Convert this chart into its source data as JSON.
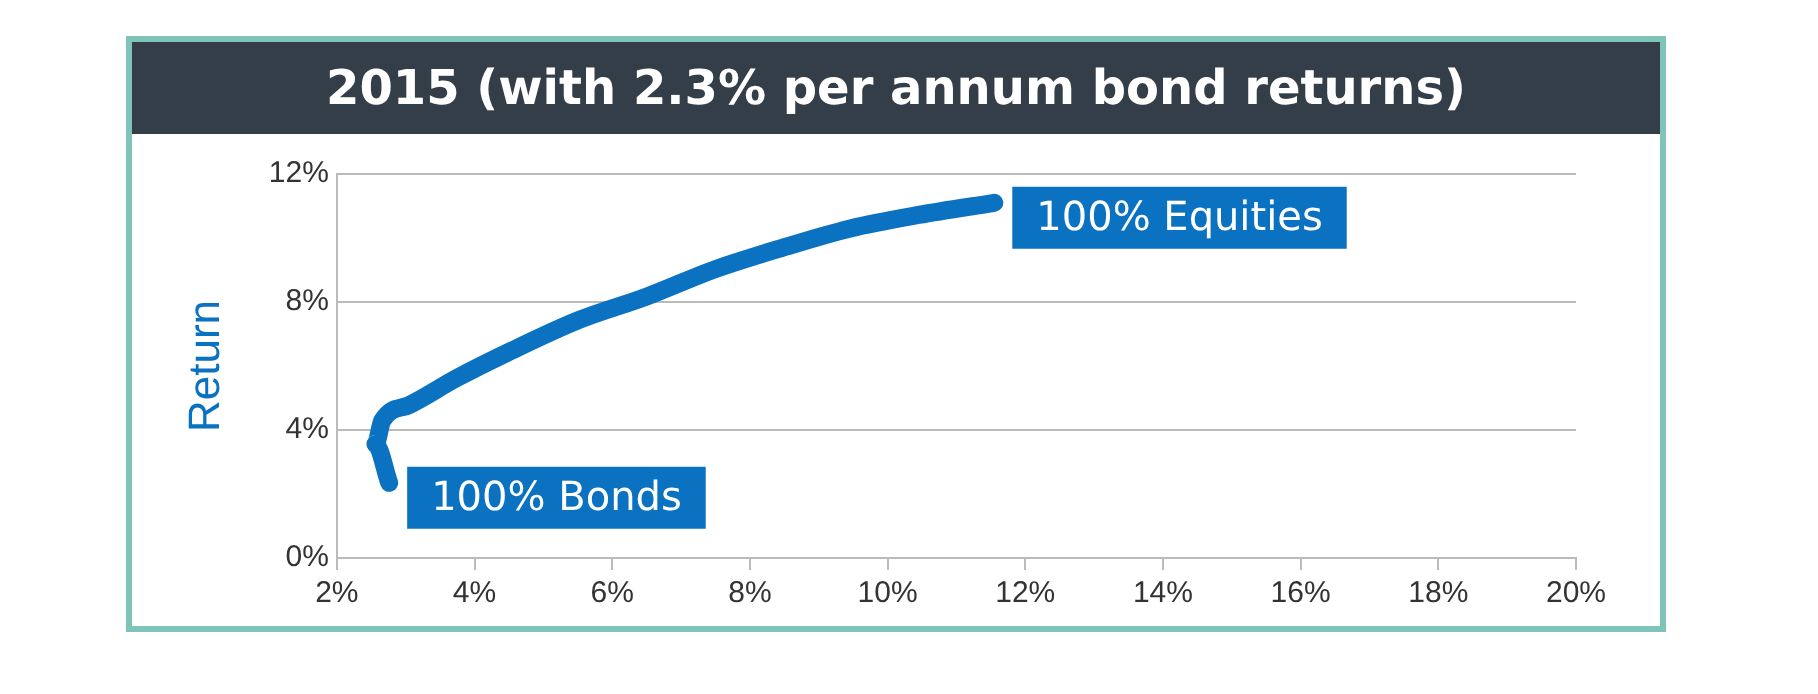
{
  "chart_data": {
    "type": "line",
    "title": "2015 (with 2.3% per annum bond returns)",
    "ylabel": "Return",
    "series": [
      {
        "color": "#0a72c0",
        "x": [
          2.76,
          2.56,
          2.66,
          3.05,
          3.74,
          4.53,
          5.52,
          6.5,
          7.49,
          8.48,
          9.46,
          10.45,
          11.55
        ],
        "values": [
          2.35,
          3.56,
          4.29,
          4.78,
          5.62,
          6.47,
          7.44,
          8.17,
          9.02,
          9.7,
          10.3,
          10.72,
          11.1
        ]
      }
    ],
    "xlim": [
      2,
      20
    ],
    "xticks": [
      {
        "value": 2,
        "label": "2%"
      },
      {
        "value": 4,
        "label": "4%"
      },
      {
        "value": 6,
        "label": "6%"
      },
      {
        "value": 8,
        "label": "8%"
      },
      {
        "value": 10,
        "label": "10%"
      },
      {
        "value": 12,
        "label": "12%"
      },
      {
        "value": 14,
        "label": "14%"
      },
      {
        "value": 16,
        "label": "16%"
      },
      {
        "value": 18,
        "label": "18%"
      },
      {
        "value": 20,
        "label": "20%"
      }
    ],
    "ylim": [
      0,
      12
    ],
    "yticks": [
      {
        "value": 0,
        "label": "0%"
      },
      {
        "value": 4,
        "label": "4%"
      },
      {
        "value": 8,
        "label": "8%"
      },
      {
        "value": 12,
        "label": "12%"
      }
    ],
    "grid": "y",
    "marker": "none",
    "line_style": "solid",
    "legend": false,
    "annotations": [
      {
        "text": "100% Bonds",
        "x": 2.76,
        "y": 2.35
      },
      {
        "text": "100% Equities",
        "x": 11.55,
        "y": 11.1
      }
    ]
  }
}
